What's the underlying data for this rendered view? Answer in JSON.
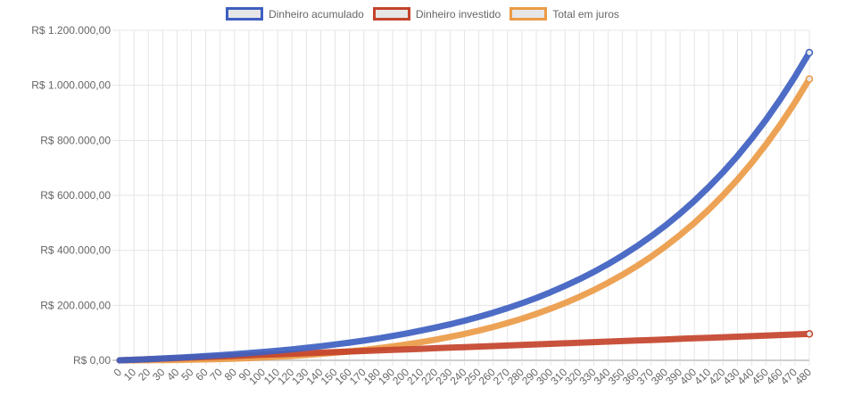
{
  "chart_data": {
    "type": "line",
    "title": "",
    "xlabel": "",
    "ylabel": "",
    "ylim": [
      0,
      1200000
    ],
    "xlim": [
      0,
      480
    ],
    "grid": true,
    "legend_position": "top",
    "y_ticks": [
      "R$ 0,00",
      "R$ 200.000,00",
      "R$ 400.000,00",
      "R$ 600.000,00",
      "R$ 800.000,00",
      "R$ 1.000.000,00",
      "R$ 1.200.000,00"
    ],
    "y_tick_values": [
      0,
      200000,
      400000,
      600000,
      800000,
      1000000,
      1200000
    ],
    "x": [
      0,
      10,
      20,
      30,
      40,
      50,
      60,
      70,
      80,
      90,
      100,
      110,
      120,
      130,
      140,
      150,
      160,
      170,
      180,
      190,
      200,
      210,
      220,
      230,
      240,
      250,
      260,
      270,
      280,
      290,
      300,
      310,
      320,
      330,
      340,
      350,
      360,
      370,
      380,
      390,
      400,
      410,
      420,
      430,
      440,
      450,
      460,
      470,
      480
    ],
    "series": [
      {
        "name": "Dinheiro acumulado",
        "color": "#3e5fc1",
        "values": [
          0,
          2073,
          4318,
          6748,
          9380,
          12230,
          15318,
          18660,
          22280,
          26200,
          30445,
          35043,
          40020,
          45410,
          51250,
          57570,
          64418,
          71833,
          79860,
          88555,
          97970,
          108165,
          119208,
          131163,
          144110,
          158133,
          173318,
          189760,
          207565,
          226850,
          247730,
          270343,
          294830,
          321348,
          350063,
          381160,
          414835,
          451303,
          490793,
          533558,
          579870,
          630020,
          684328,
          743138,
          806825,
          875793,
          950478,
          1031355,
          1118938
        ]
      },
      {
        "name": "Dinheiro investido",
        "color": "#c4432b",
        "values": [
          0,
          2000,
          4000,
          6000,
          8000,
          10000,
          12000,
          14000,
          16000,
          18000,
          20000,
          22000,
          24000,
          26000,
          28000,
          30000,
          32000,
          34000,
          36000,
          38000,
          40000,
          42000,
          44000,
          46000,
          48000,
          50000,
          52000,
          54000,
          56000,
          58000,
          60000,
          62000,
          64000,
          66000,
          68000,
          70000,
          72000,
          74000,
          76000,
          78000,
          80000,
          82000,
          84000,
          86000,
          88000,
          90000,
          92000,
          94000,
          96000
        ]
      },
      {
        "name": "Total em juros",
        "color": "#eb9b47",
        "values": [
          0,
          73,
          318,
          748,
          1380,
          2230,
          3318,
          4660,
          6280,
          8200,
          10445,
          13043,
          16020,
          19410,
          23250,
          27570,
          32418,
          37833,
          43860,
          50555,
          57970,
          66165,
          75208,
          85163,
          96110,
          108133,
          121318,
          135760,
          151565,
          168850,
          187730,
          208343,
          230830,
          255348,
          282063,
          311160,
          342835,
          377303,
          414793,
          455558,
          499870,
          548020,
          600328,
          657138,
          718825,
          785793,
          858478,
          937355,
          1022938
        ]
      }
    ]
  },
  "legend": {
    "items": [
      {
        "label": "Dinheiro acumulado",
        "color": "#3e5fc1"
      },
      {
        "label": "Dinheiro investido",
        "color": "#c4432b"
      },
      {
        "label": "Total em juros",
        "color": "#eb9b47"
      }
    ]
  }
}
